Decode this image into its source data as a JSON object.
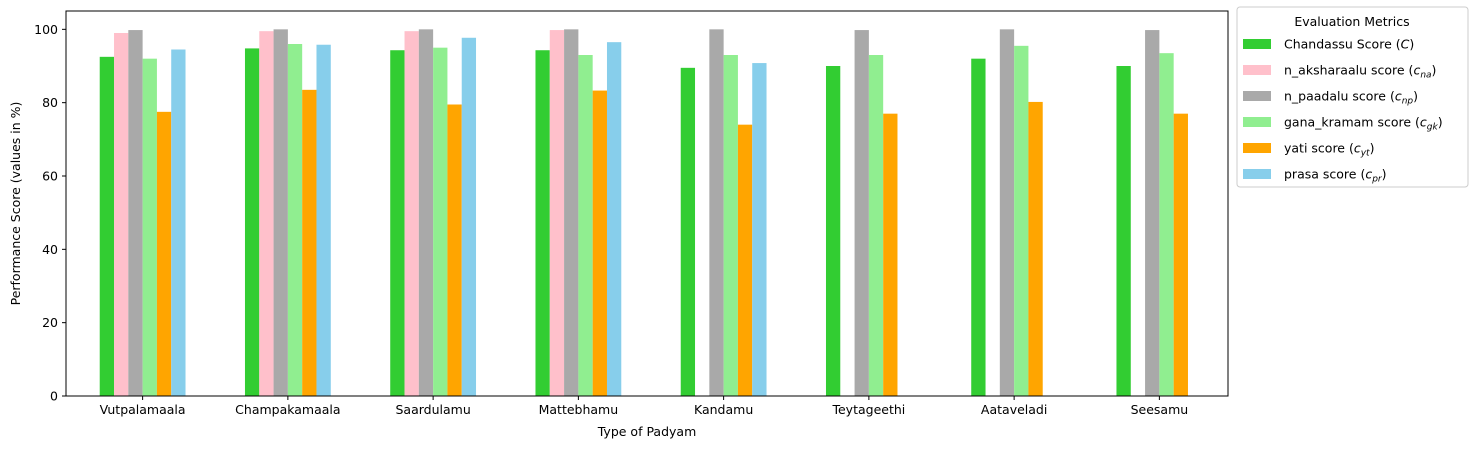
{
  "chart_data": {
    "type": "bar",
    "xlabel": "Type of Padyam",
    "ylabel": "Performance Score (values in %)",
    "ylim": [
      0,
      105
    ],
    "yticks": [
      "0",
      "20",
      "40",
      "60",
      "80",
      "100"
    ],
    "grid": false,
    "legend_title": "Evaluation Metrics",
    "legend_placement": "outside-right-top",
    "categories": [
      "Vutpalamaala",
      "Champakamaala",
      "Saardulamu",
      "Mattebhamu",
      "Kandamu",
      "Teytageethi",
      "Aataveladi",
      "Seesamu"
    ],
    "series": [
      {
        "name": "Chandassu Score (C)",
        "label": "Chandassu Score (",
        "sym": "C",
        "sub": "",
        "color": "#32CD32",
        "values": [
          92.5,
          94.8,
          94.3,
          94.3,
          89.5,
          90.0,
          92.0,
          90.0
        ]
      },
      {
        "name": "n_aksharaalu score (c_na)",
        "label": "n_aksharaalu score (",
        "sym": "c",
        "sub": "na",
        "color": "#FFC0CB",
        "values": [
          99.0,
          99.5,
          99.5,
          99.8,
          null,
          null,
          null,
          null
        ]
      },
      {
        "name": "n_paadalu score (c_np)",
        "label": "n_paadalu score (",
        "sym": "c",
        "sub": "np",
        "color": "#A9A9A9",
        "values": [
          99.8,
          100.0,
          100.0,
          100.0,
          100.0,
          99.8,
          100.0,
          99.8
        ]
      },
      {
        "name": "gana_kramam score (c_gk)",
        "label": "gana_kramam score (",
        "sym": "c",
        "sub": "gk",
        "color": "#90EE90",
        "values": [
          92.0,
          96.0,
          95.0,
          93.0,
          93.0,
          93.0,
          95.5,
          93.5
        ]
      },
      {
        "name": "yati score (c_yt)",
        "label": "yati score (",
        "sym": "c",
        "sub": "yt",
        "color": "#FFA500",
        "values": [
          77.5,
          83.5,
          79.5,
          83.3,
          74.0,
          77.0,
          80.2,
          77.0
        ]
      },
      {
        "name": "prasa score (c_pr)",
        "label": "prasa score (",
        "sym": "c",
        "sub": "pr",
        "color": "#87CEEB",
        "values": [
          94.5,
          95.8,
          97.7,
          96.5,
          90.8,
          null,
          null,
          null
        ]
      }
    ]
  }
}
